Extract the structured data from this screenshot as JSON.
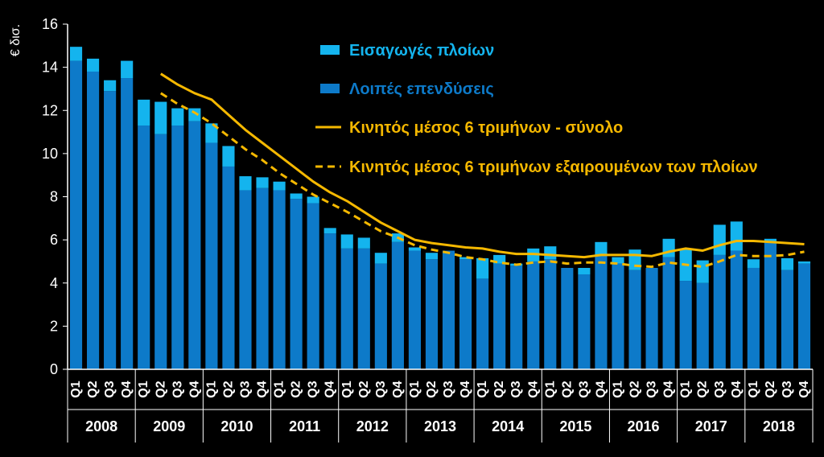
{
  "chart_data": {
    "type": "bar",
    "ylabel": "€ δισ.",
    "ylim": [
      0,
      16
    ],
    "yticks": [
      0,
      2,
      4,
      6,
      8,
      10,
      12,
      14,
      16
    ],
    "quarters": [
      "Q1",
      "Q2",
      "Q3",
      "Q4"
    ],
    "years": [
      "2008",
      "2009",
      "2010",
      "2011",
      "2012",
      "2013",
      "2014",
      "2015",
      "2016",
      "2017",
      "2018"
    ],
    "colors": {
      "ships": "#14b4ee",
      "other": "#0d7ac9",
      "ma_total": "#f5b800",
      "ma_excl": "#f5b800",
      "axis": "#ffffff",
      "background": "#000000"
    },
    "series": [
      {
        "name": "Λοιπές επενδύσεις",
        "kind": "bar-stack-bottom",
        "values": [
          14.3,
          13.8,
          12.9,
          13.5,
          11.3,
          10.9,
          11.3,
          11.5,
          10.5,
          9.4,
          8.3,
          8.4,
          8.3,
          7.9,
          7.7,
          6.3,
          5.6,
          5.6,
          4.9,
          5.9,
          5.5,
          5.1,
          5.5,
          5.1,
          4.2,
          4.9,
          4.8,
          5.0,
          5.1,
          4.7,
          4.4,
          5.3,
          4.9,
          4.6,
          4.7,
          5.2,
          4.1,
          4.0,
          5.3,
          5.5,
          4.7,
          5.9,
          4.6,
          4.9
        ]
      },
      {
        "name": "Εισαγωγές πλοίων",
        "kind": "bar-stack-top",
        "values": [
          0.65,
          0.6,
          0.5,
          0.8,
          1.2,
          1.5,
          0.8,
          0.6,
          0.9,
          0.95,
          0.65,
          0.5,
          0.4,
          0.25,
          0.3,
          0.25,
          0.65,
          0.5,
          0.5,
          0.4,
          0.15,
          0.3,
          0.0,
          0.1,
          0.95,
          0.4,
          0.1,
          0.6,
          0.6,
          0.0,
          0.3,
          0.6,
          0.3,
          0.95,
          0.0,
          0.85,
          1.45,
          1.05,
          1.4,
          1.35,
          0.4,
          0.15,
          0.55,
          0.1
        ]
      },
      {
        "name": "Κινητός μέσος 6 τριμήνων - σύνολο",
        "kind": "line-solid",
        "values": [
          null,
          null,
          null,
          null,
          null,
          13.7,
          13.2,
          12.8,
          12.5,
          11.8,
          11.1,
          10.5,
          9.9,
          9.3,
          8.7,
          8.2,
          7.8,
          7.3,
          6.8,
          6.4,
          6.0,
          5.85,
          5.75,
          5.65,
          5.6,
          5.45,
          5.35,
          5.35,
          5.3,
          5.25,
          5.2,
          5.3,
          5.3,
          5.3,
          5.25,
          5.45,
          5.6,
          5.5,
          5.75,
          5.95,
          5.95,
          5.9,
          5.85,
          5.8
        ]
      },
      {
        "name": "Κινητός μέσος 6 τριμήνων εξαιρουμένων των πλοίων",
        "kind": "line-dashed",
        "values": [
          null,
          null,
          null,
          null,
          null,
          12.8,
          12.3,
          11.9,
          11.4,
          10.8,
          10.2,
          9.7,
          9.1,
          8.6,
          8.1,
          7.7,
          7.3,
          6.85,
          6.4,
          6.1,
          5.75,
          5.55,
          5.4,
          5.2,
          5.1,
          4.95,
          4.85,
          4.95,
          5.0,
          4.9,
          4.95,
          4.95,
          4.9,
          4.8,
          4.75,
          4.95,
          4.85,
          4.75,
          5.0,
          5.3,
          5.25,
          5.25,
          5.3,
          5.45
        ]
      }
    ],
    "legend": {
      "placement": "top-center"
    }
  }
}
